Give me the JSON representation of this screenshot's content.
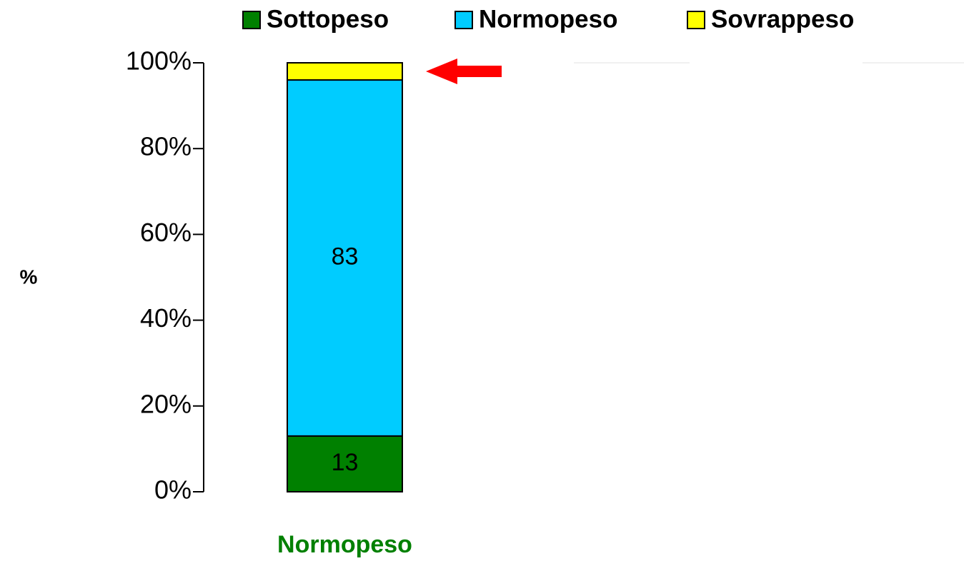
{
  "chart_data": {
    "type": "stacked_bar",
    "categories": [
      "Normopeso"
    ],
    "series": [
      {
        "name": "Sottopeso",
        "color": "#008000",
        "values": [
          13
        ]
      },
      {
        "name": "Normopeso",
        "color": "#00ccff",
        "values": [
          83
        ]
      },
      {
        "name": "Sovrappeso",
        "color": "#ffff00",
        "values": [
          4
        ]
      }
    ],
    "value_labels": [
      [
        "13"
      ],
      [
        "83"
      ],
      [
        null
      ]
    ],
    "y_label": "%",
    "ylim": [
      0,
      100
    ],
    "yticks": [
      {
        "value": 0,
        "label": "0%"
      },
      {
        "value": 20,
        "label": "20%"
      },
      {
        "value": 40,
        "label": "40%"
      },
      {
        "value": 60,
        "label": "60%"
      },
      {
        "value": 80,
        "label": "80%"
      },
      {
        "value": 100,
        "label": "100%"
      }
    ],
    "category_color": "#008000",
    "legend": "top"
  }
}
